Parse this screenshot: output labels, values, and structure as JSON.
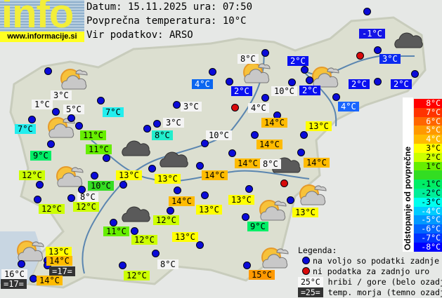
{
  "logo": {
    "word": "info",
    "url": "www.informacije.si"
  },
  "header": {
    "date_line": "Datum: 15.11.2025 ura: 07:50",
    "avg_line": "Povprečna temperatura: 10°C",
    "source_line": "Vir podatkov: ARSO"
  },
  "stations": [
    {
      "temp": "-1°C",
      "bg": "#1414e6",
      "fg": "#fff"
    },
    {
      "temp": "3°C",
      "bg": "#0a2af0",
      "fg": "#fff"
    },
    {
      "temp": "2°C",
      "bg": "#0a10f0",
      "fg": "#fff"
    },
    {
      "temp": "2°C",
      "bg": "#0a10f0",
      "fg": "#fff"
    },
    {
      "temp": "2°C",
      "bg": "#0a10f0",
      "fg": "#fff"
    },
    {
      "temp": "2°C",
      "bg": "#0a10f0",
      "fg": "#fff"
    },
    {
      "temp": "4°C",
      "bg": "#1a66ff",
      "fg": "#fff"
    },
    {
      "temp": "4°C",
      "bg": "#0a66f0",
      "fg": "#fff"
    },
    {
      "temp": "8°C",
      "bg": "#f4f4f4",
      "fg": "#000"
    },
    {
      "temp": "2°C",
      "bg": "#0a10f0",
      "fg": "#fff"
    },
    {
      "temp": "10°C",
      "bg": "#f4f4f4",
      "fg": "#000"
    },
    {
      "temp": "4°C",
      "bg": "#f4f4f4",
      "fg": "#000"
    },
    {
      "temp": "14°C",
      "bg": "#ffbb00",
      "fg": "#000"
    },
    {
      "temp": "13°C",
      "bg": "#ffff00",
      "fg": "#000"
    },
    {
      "temp": "10°C",
      "bg": "#f4f4f4",
      "fg": "#000"
    },
    {
      "temp": "14°C",
      "bg": "#ffbb00",
      "fg": "#000"
    },
    {
      "temp": "14°C",
      "bg": "#ffbb00",
      "fg": "#000"
    },
    {
      "temp": "8°C",
      "bg": "#f4f4f4",
      "fg": "#000"
    },
    {
      "temp": "14°C",
      "bg": "#ffbb00",
      "fg": "#000"
    },
    {
      "temp": "13°C",
      "bg": "#ffff00",
      "fg": "#000"
    },
    {
      "temp": "3°C",
      "bg": "#f4f4f4",
      "fg": "#000"
    },
    {
      "temp": "1°C",
      "bg": "#f4f4f4",
      "fg": "#000"
    },
    {
      "temp": "5°C",
      "bg": "#f4f4f4",
      "fg": "#000"
    },
    {
      "temp": "7°C",
      "bg": "#22eeee",
      "fg": "#000"
    },
    {
      "temp": "7°C",
      "bg": "#22eeee",
      "fg": "#000"
    },
    {
      "temp": "11°C",
      "bg": "#66ee00",
      "fg": "#000"
    },
    {
      "temp": "11°C",
      "bg": "#66ee00",
      "fg": "#000"
    },
    {
      "temp": "9°C",
      "bg": "#00ee66",
      "fg": "#000"
    },
    {
      "temp": "3°C",
      "bg": "#f4f4f4",
      "fg": "#000"
    },
    {
      "temp": "3°C",
      "bg": "#f4f4f4",
      "fg": "#000"
    },
    {
      "temp": "8°C",
      "bg": "#22eecc",
      "fg": "#000"
    },
    {
      "temp": "12°C",
      "bg": "#ccff00",
      "fg": "#000"
    },
    {
      "temp": "10°C",
      "bg": "#33dd22",
      "fg": "#000"
    },
    {
      "temp": "13°C",
      "bg": "#ffff00",
      "fg": "#000"
    },
    {
      "temp": "13°C",
      "bg": "#ffff00",
      "fg": "#000"
    },
    {
      "temp": "14°C",
      "bg": "#ffbb00",
      "fg": "#000"
    },
    {
      "temp": "8°C",
      "bg": "#f4f4f4",
      "fg": "#000"
    },
    {
      "temp": "12°C",
      "bg": "#ccff00",
      "fg": "#000"
    },
    {
      "temp": "12°C",
      "bg": "#ccff00",
      "fg": "#000"
    },
    {
      "temp": "14°C",
      "bg": "#ffbb00",
      "fg": "#000"
    },
    {
      "temp": "13°C",
      "bg": "#ffff00",
      "fg": "#000"
    },
    {
      "temp": "13°C",
      "bg": "#ffff00",
      "fg": "#000"
    },
    {
      "temp": "12°C",
      "bg": "#ccff00",
      "fg": "#000"
    },
    {
      "temp": "11°C",
      "bg": "#66ee00",
      "fg": "#000"
    },
    {
      "temp": "12°C",
      "bg": "#ccff00",
      "fg": "#000"
    },
    {
      "temp": "13°C",
      "bg": "#ffff00",
      "fg": "#000"
    },
    {
      "temp": "9°C",
      "bg": "#00ee66",
      "fg": "#000"
    },
    {
      "temp": "13°C",
      "bg": "#ffff00",
      "fg": "#000"
    },
    {
      "temp": "14°C",
      "bg": "#ffbb00",
      "fg": "#000"
    },
    {
      "temp": "=17=",
      "bg": "#333333",
      "fg": "#fff"
    },
    {
      "temp": "16°C",
      "bg": "#f4f4f4",
      "fg": "#000"
    },
    {
      "temp": "=17=",
      "bg": "#333333",
      "fg": "#fff"
    },
    {
      "temp": "14°C",
      "bg": "#ffbb00",
      "fg": "#000"
    },
    {
      "temp": "12°C",
      "bg": "#ccff00",
      "fg": "#000"
    },
    {
      "temp": "8°C",
      "bg": "#f4f4f4",
      "fg": "#000"
    },
    {
      "temp": "15°C",
      "bg": "#ff9900",
      "fg": "#000"
    },
    {
      "temp": "13°C",
      "bg": "#ffff00",
      "fg": "#000"
    },
    {
      "temp": "13°C",
      "bg": "#ffff00",
      "fg": "#000"
    },
    {
      "temp": "14°C",
      "bg": "#ffbb00",
      "fg": "#000"
    }
  ],
  "weather_icons": [
    "sun-cloud",
    "sun-cloud",
    "sun-cloud",
    "sun-cloud",
    "sun-cloud",
    "sun-cloud",
    "sun-cloud",
    "sun-cloud",
    "sun-cloud",
    "dark-cloud",
    "dark-cloud",
    "dark-cloud",
    "dark-cloud",
    "dark-cloud"
  ],
  "scale": {
    "title": "Odstopanje od povprečne temperature:",
    "rows": [
      {
        "label": "8°C",
        "color": "#ff0000"
      },
      {
        "label": "7°C",
        "color": "#ff3300"
      },
      {
        "label": "6°C",
        "color": "#ff6600"
      },
      {
        "label": "5°C",
        "color": "#ff9900"
      },
      {
        "label": "4°C",
        "color": "#ffbb00"
      },
      {
        "label": "3°C",
        "color": "#ffff00"
      },
      {
        "label": "2°C",
        "color": "#ccff00"
      },
      {
        "label": "1°C",
        "color": "#66ee00"
      },
      {
        "label": "",
        "color": "#33dd22"
      },
      {
        "label": "-1°C",
        "color": "#00ee66"
      },
      {
        "label": "-2°C",
        "color": "#00ee99"
      },
      {
        "label": "-3°C",
        "color": "#00ffee"
      },
      {
        "label": "-4°C",
        "color": "#00ccff"
      },
      {
        "label": "-5°C",
        "color": "#0099ff"
      },
      {
        "label": "-6°C",
        "color": "#0066ff"
      },
      {
        "label": "-7°C",
        "color": "#0033ff"
      },
      {
        "label": "-8°C",
        "color": "#0000ff"
      }
    ]
  },
  "legend": {
    "title": "Legenda:",
    "available": "na voljo so podatki zadnje ure",
    "no_data": "ni podatka za zadnjo uro",
    "mountain_sample": "25°C",
    "mountain_text": "hribi / gore (belo ozadje)",
    "sea_sample": "=25=",
    "sea_text": "temp. morja (temno ozadje)"
  }
}
